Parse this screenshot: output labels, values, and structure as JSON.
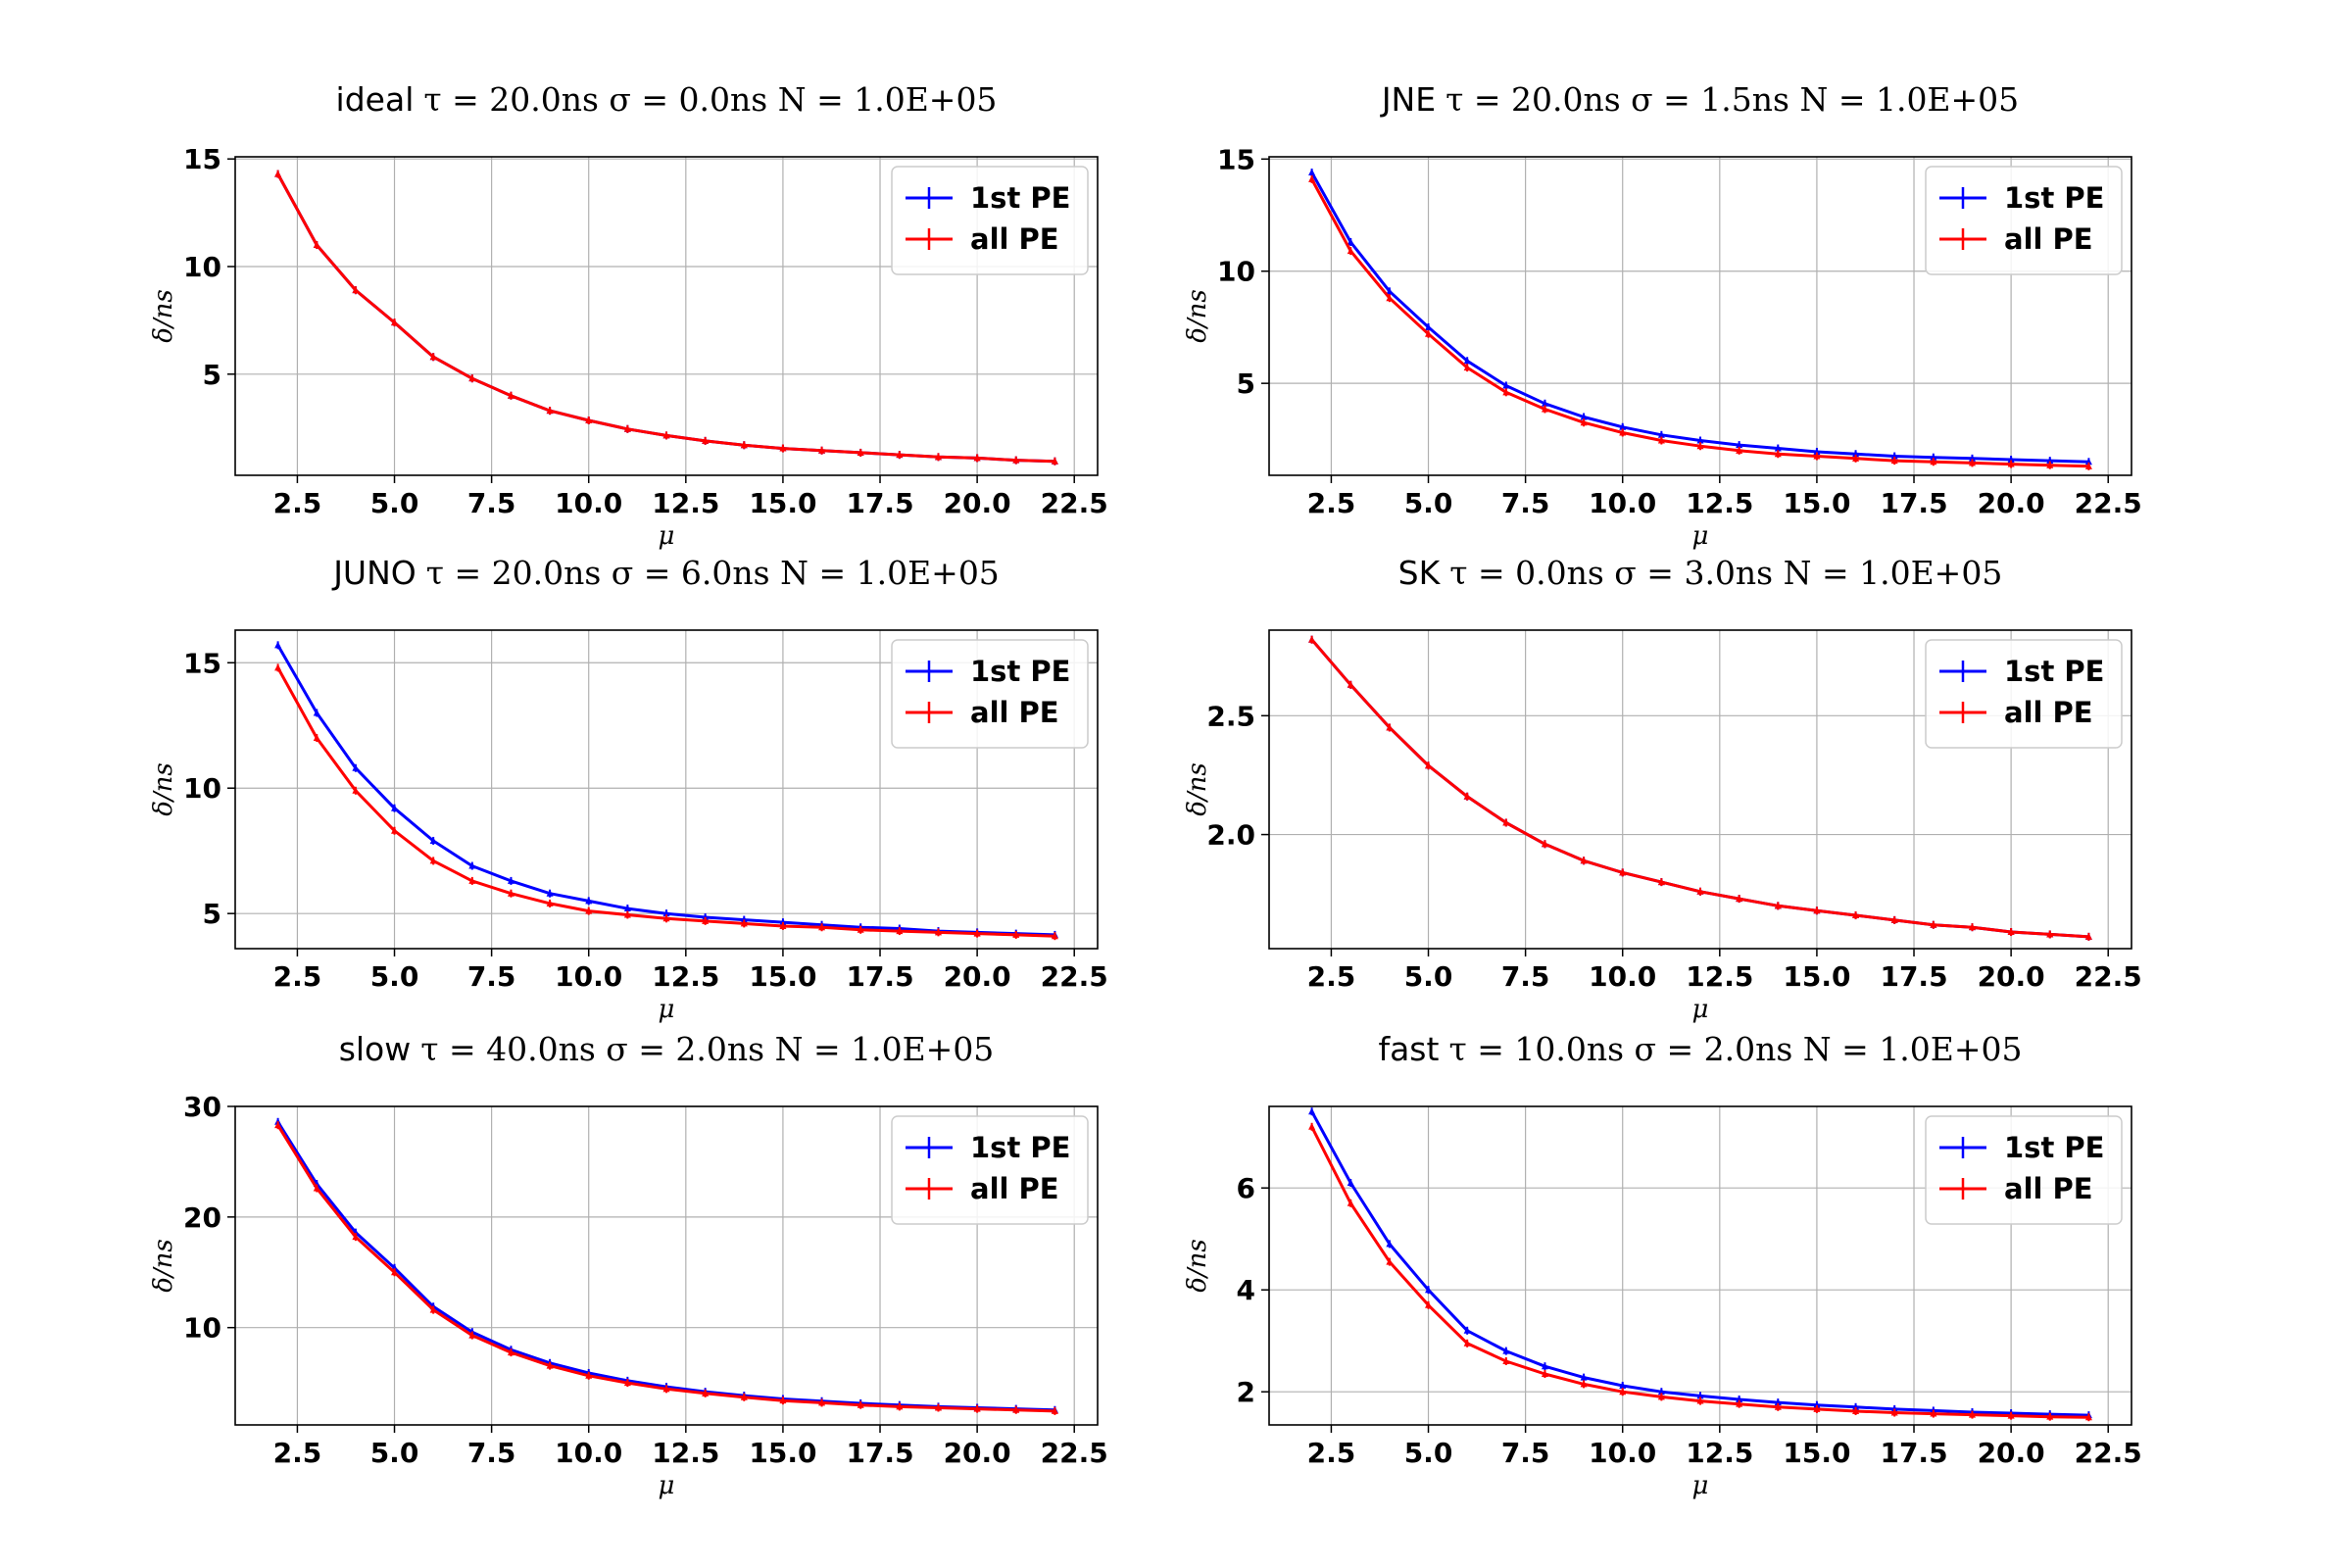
{
  "chart_data": [
    {
      "type": "line",
      "title_prefix": "ideal",
      "title_math": "τ = 20.0ns σ = 0.0ns N = 1.0E+05",
      "xlabel": "μ",
      "ylabel": "δ/ns",
      "xlim": [
        0.9,
        23.1
      ],
      "ylim": [
        0.3,
        15.1
      ],
      "xticks": [
        "2.5",
        "5.0",
        "7.5",
        "10.0",
        "12.5",
        "15.0",
        "17.5",
        "20.0",
        "22.5"
      ],
      "yticks": [
        "5",
        "10",
        "15"
      ],
      "grid": true,
      "legend": "top-right",
      "legend_entries": [
        "1st PE",
        "all PE"
      ],
      "x": [
        2,
        3,
        4,
        5,
        6,
        7,
        8,
        9,
        10,
        11,
        12,
        13,
        14,
        15,
        16,
        17,
        18,
        19,
        20,
        21,
        22
      ],
      "series": [
        {
          "name": "1st PE",
          "color": "#0000ff",
          "values": [
            14.3,
            11.0,
            8.9,
            7.4,
            5.8,
            4.8,
            4.0,
            3.3,
            2.85,
            2.45,
            2.15,
            1.9,
            1.7,
            1.55,
            1.45,
            1.35,
            1.25,
            1.15,
            1.1,
            1.0,
            0.95
          ]
        },
        {
          "name": "all PE",
          "color": "#ff0000",
          "values": [
            14.3,
            11.0,
            8.9,
            7.4,
            5.8,
            4.8,
            4.0,
            3.3,
            2.85,
            2.45,
            2.15,
            1.9,
            1.7,
            1.55,
            1.45,
            1.35,
            1.25,
            1.15,
            1.1,
            1.0,
            0.95
          ]
        }
      ]
    },
    {
      "type": "line",
      "title_prefix": "JNE",
      "title_math": "τ = 20.0ns σ = 1.5ns N = 1.0E+05",
      "xlabel": "μ",
      "ylabel": "δ/ns",
      "xlim": [
        0.9,
        23.1
      ],
      "ylim": [
        0.9,
        15.1
      ],
      "xticks": [
        "2.5",
        "5.0",
        "7.5",
        "10.0",
        "12.5",
        "15.0",
        "17.5",
        "20.0",
        "22.5"
      ],
      "yticks": [
        "5",
        "10",
        "15"
      ],
      "grid": true,
      "legend": "top-right",
      "legend_entries": [
        "1st PE",
        "all PE"
      ],
      "x": [
        2,
        3,
        4,
        5,
        6,
        7,
        8,
        9,
        10,
        11,
        12,
        13,
        14,
        15,
        16,
        17,
        18,
        19,
        20,
        21,
        22
      ],
      "series": [
        {
          "name": "1st PE",
          "color": "#0000ff",
          "values": [
            14.4,
            11.3,
            9.1,
            7.5,
            6.0,
            4.9,
            4.1,
            3.5,
            3.05,
            2.7,
            2.45,
            2.25,
            2.1,
            1.95,
            1.85,
            1.75,
            1.7,
            1.65,
            1.6,
            1.55,
            1.5
          ]
        },
        {
          "name": "all PE",
          "color": "#ff0000",
          "values": [
            14.1,
            10.9,
            8.8,
            7.2,
            5.7,
            4.6,
            3.85,
            3.25,
            2.8,
            2.45,
            2.2,
            2.0,
            1.85,
            1.75,
            1.65,
            1.55,
            1.5,
            1.45,
            1.4,
            1.35,
            1.3
          ]
        }
      ]
    },
    {
      "type": "line",
      "title_prefix": "JUNO",
      "title_math": "τ = 20.0ns σ = 6.0ns N = 1.0E+05",
      "xlabel": "μ",
      "ylabel": "δ/ns",
      "xlim": [
        0.9,
        23.1
      ],
      "ylim": [
        3.6,
        16.3
      ],
      "xticks": [
        "2.5",
        "5.0",
        "7.5",
        "10.0",
        "12.5",
        "15.0",
        "17.5",
        "20.0",
        "22.5"
      ],
      "yticks": [
        "5",
        "10",
        "15"
      ],
      "grid": true,
      "legend": "top-right",
      "legend_entries": [
        "1st PE",
        "all PE"
      ],
      "x": [
        2,
        3,
        4,
        5,
        6,
        7,
        8,
        9,
        10,
        11,
        12,
        13,
        14,
        15,
        16,
        17,
        18,
        19,
        20,
        21,
        22
      ],
      "series": [
        {
          "name": "1st PE",
          "color": "#0000ff",
          "values": [
            15.7,
            13.0,
            10.8,
            9.2,
            7.9,
            6.9,
            6.3,
            5.8,
            5.5,
            5.2,
            5.0,
            4.85,
            4.75,
            4.65,
            4.55,
            4.45,
            4.4,
            4.3,
            4.25,
            4.2,
            4.15
          ]
        },
        {
          "name": "all PE",
          "color": "#ff0000",
          "values": [
            14.8,
            12.0,
            9.9,
            8.3,
            7.1,
            6.3,
            5.8,
            5.4,
            5.1,
            4.95,
            4.8,
            4.7,
            4.6,
            4.5,
            4.45,
            4.35,
            4.3,
            4.25,
            4.2,
            4.15,
            4.1
          ]
        }
      ]
    },
    {
      "type": "line",
      "title_prefix": "SK",
      "title_math": "τ = 0.0ns σ = 3.0ns N = 1.0E+05",
      "xlabel": "μ",
      "ylabel": "δ/ns",
      "xlim": [
        0.9,
        23.1
      ],
      "ylim": [
        1.52,
        2.86
      ],
      "xticks": [
        "2.5",
        "5.0",
        "7.5",
        "10.0",
        "12.5",
        "15.0",
        "17.5",
        "20.0",
        "22.5"
      ],
      "yticks": [
        "2.0",
        "2.5"
      ],
      "grid": true,
      "legend": "top-right",
      "legend_entries": [
        "1st PE",
        "all PE"
      ],
      "x": [
        2,
        3,
        4,
        5,
        6,
        7,
        8,
        9,
        10,
        11,
        12,
        13,
        14,
        15,
        16,
        17,
        18,
        19,
        20,
        21,
        22
      ],
      "series": [
        {
          "name": "1st PE",
          "color": "#0000ff",
          "values": [
            2.82,
            2.63,
            2.45,
            2.29,
            2.16,
            2.05,
            1.96,
            1.89,
            1.84,
            1.8,
            1.76,
            1.73,
            1.7,
            1.68,
            1.66,
            1.64,
            1.62,
            1.61,
            1.59,
            1.58,
            1.57
          ]
        },
        {
          "name": "all PE",
          "color": "#ff0000",
          "values": [
            2.82,
            2.63,
            2.45,
            2.29,
            2.16,
            2.05,
            1.96,
            1.89,
            1.84,
            1.8,
            1.76,
            1.73,
            1.7,
            1.68,
            1.66,
            1.64,
            1.62,
            1.61,
            1.59,
            1.58,
            1.57
          ]
        }
      ]
    },
    {
      "type": "line",
      "title_prefix": "slow",
      "title_math": "τ = 40.0ns σ = 2.0ns N = 1.0E+05",
      "xlabel": "μ",
      "ylabel": "δ/ns",
      "xlim": [
        0.9,
        23.1
      ],
      "ylim": [
        1.2,
        30.0
      ],
      "xticks": [
        "2.5",
        "5.0",
        "7.5",
        "10.0",
        "12.5",
        "15.0",
        "17.5",
        "20.0",
        "22.5"
      ],
      "yticks": [
        "10",
        "20",
        "30"
      ],
      "grid": true,
      "legend": "top-right",
      "legend_entries": [
        "1st PE",
        "all PE"
      ],
      "x": [
        2,
        3,
        4,
        5,
        6,
        7,
        8,
        9,
        10,
        11,
        12,
        13,
        14,
        15,
        16,
        17,
        18,
        19,
        20,
        21,
        22
      ],
      "series": [
        {
          "name": "1st PE",
          "color": "#0000ff",
          "values": [
            28.6,
            23.0,
            18.6,
            15.4,
            11.9,
            9.6,
            8.0,
            6.8,
            5.9,
            5.2,
            4.65,
            4.2,
            3.85,
            3.55,
            3.35,
            3.15,
            3.0,
            2.85,
            2.75,
            2.65,
            2.55
          ]
        },
        {
          "name": "all PE",
          "color": "#ff0000",
          "values": [
            28.3,
            22.6,
            18.2,
            15.0,
            11.6,
            9.3,
            7.75,
            6.55,
            5.65,
            5.0,
            4.45,
            4.05,
            3.7,
            3.4,
            3.2,
            3.0,
            2.85,
            2.75,
            2.65,
            2.55,
            2.45
          ]
        }
      ]
    },
    {
      "type": "line",
      "title_prefix": "fast",
      "title_math": "τ = 10.0ns σ = 2.0ns N = 1.0E+05",
      "xlabel": "μ",
      "ylabel": "δ/ns",
      "xlim": [
        0.9,
        23.1
      ],
      "ylim": [
        1.35,
        7.6
      ],
      "xticks": [
        "2.5",
        "5.0",
        "7.5",
        "10.0",
        "12.5",
        "15.0",
        "17.5",
        "20.0",
        "22.5"
      ],
      "yticks": [
        "2",
        "4",
        "6"
      ],
      "grid": true,
      "legend": "top-right",
      "legend_entries": [
        "1st PE",
        "all PE"
      ],
      "x": [
        2,
        3,
        4,
        5,
        6,
        7,
        8,
        9,
        10,
        11,
        12,
        13,
        14,
        15,
        16,
        17,
        18,
        19,
        20,
        21,
        22
      ],
      "series": [
        {
          "name": "1st PE",
          "color": "#0000ff",
          "values": [
            7.5,
            6.1,
            4.9,
            4.0,
            3.2,
            2.8,
            2.5,
            2.28,
            2.12,
            2.0,
            1.92,
            1.85,
            1.79,
            1.74,
            1.7,
            1.66,
            1.63,
            1.6,
            1.58,
            1.56,
            1.54
          ]
        },
        {
          "name": "all PE",
          "color": "#ff0000",
          "values": [
            7.2,
            5.7,
            4.55,
            3.7,
            2.95,
            2.6,
            2.35,
            2.15,
            2.0,
            1.9,
            1.82,
            1.76,
            1.7,
            1.66,
            1.62,
            1.59,
            1.57,
            1.55,
            1.53,
            1.51,
            1.5
          ]
        }
      ]
    }
  ]
}
